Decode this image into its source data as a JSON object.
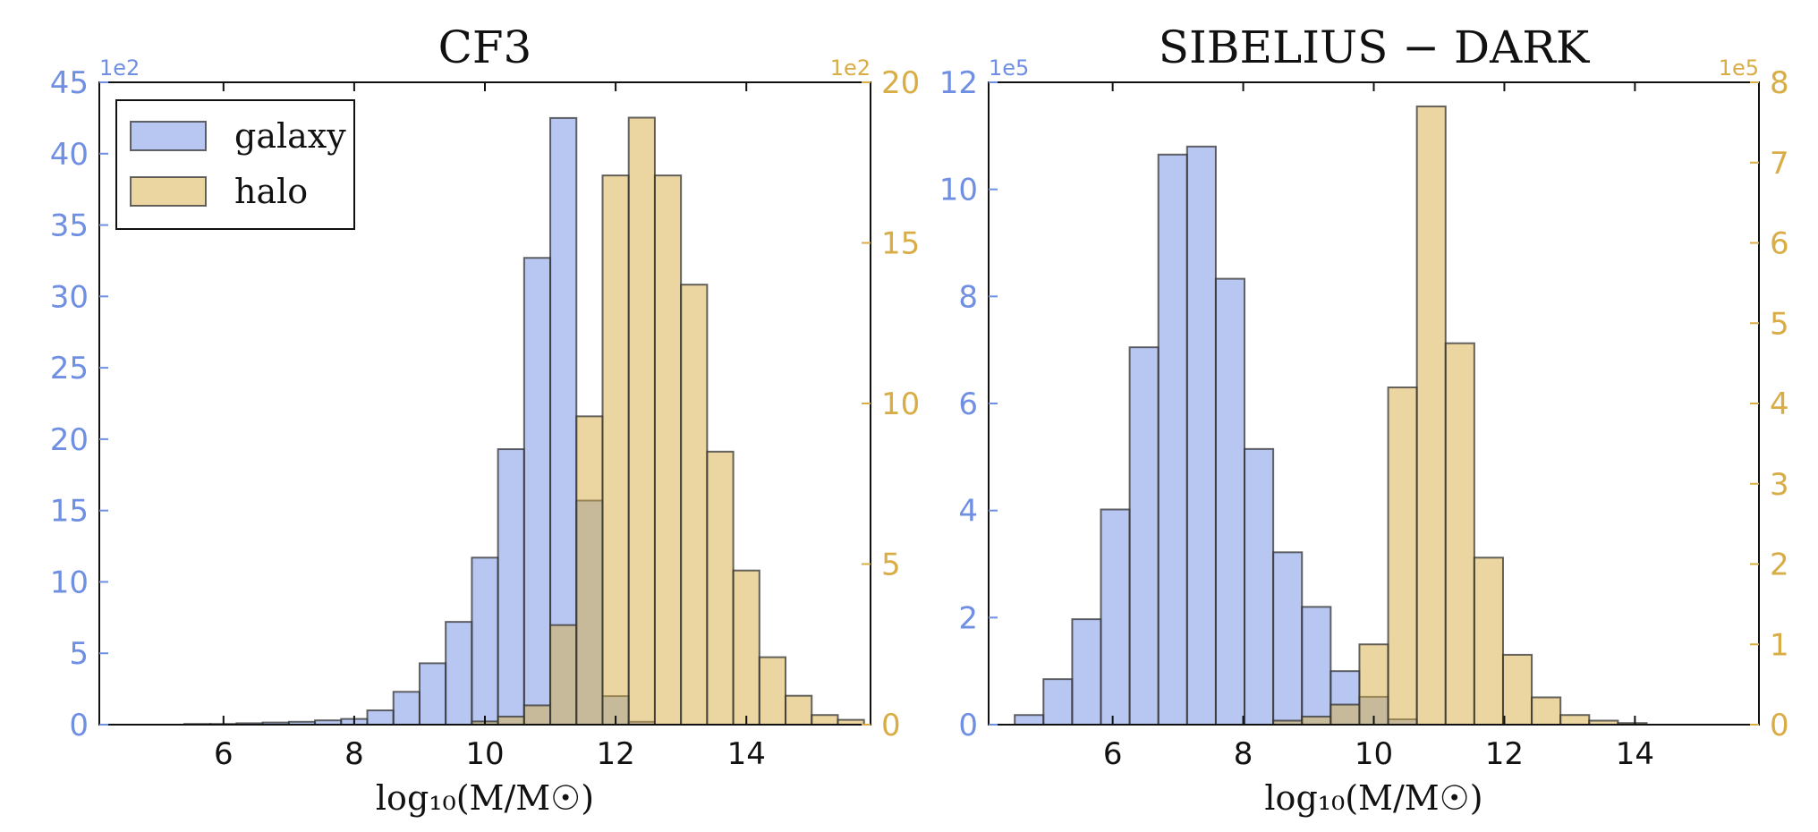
{
  "colors": {
    "galaxy": "#6f8fe3",
    "halo": "#d8ad45",
    "axis": "#111111"
  },
  "chart_data": [
    {
      "type": "bar",
      "title": "CF3",
      "xlabel": "log₁₀(M/M☉)",
      "xlim": [
        4.1,
        15.9
      ],
      "xticks": [
        6,
        8,
        10,
        12,
        14
      ],
      "xtick_labels": [
        "6",
        "8",
        "10",
        "12",
        "14"
      ],
      "y_left": {
        "lim": [
          0,
          45
        ],
        "ticks": [
          0,
          5,
          10,
          15,
          20,
          25,
          30,
          35,
          40,
          45
        ],
        "tick_labels": [
          "0",
          "5",
          "10",
          "15",
          "20",
          "25",
          "30",
          "35",
          "40",
          "45"
        ],
        "scale_label": "1e2",
        "color": "#6f8fe3"
      },
      "y_right": {
        "lim": [
          0,
          20
        ],
        "ticks": [
          0,
          5,
          10,
          15,
          20
        ],
        "tick_labels": [
          "0",
          "5",
          "10",
          "15",
          "20"
        ],
        "scale_label": "1e2",
        "color": "#d8ad45"
      },
      "legend": {
        "position": "top-left",
        "entries": [
          "galaxy",
          "halo"
        ]
      },
      "series": [
        {
          "name": "galaxy",
          "axis": "left",
          "bins": [
            {
              "x0": 5.4,
              "x1": 5.8,
              "y": 0.05
            },
            {
              "x0": 5.8,
              "x1": 6.2,
              "y": 0.05
            },
            {
              "x0": 6.2,
              "x1": 6.6,
              "y": 0.1
            },
            {
              "x0": 6.6,
              "x1": 7.0,
              "y": 0.15
            },
            {
              "x0": 7.0,
              "x1": 7.4,
              "y": 0.2
            },
            {
              "x0": 7.4,
              "x1": 7.8,
              "y": 0.3
            },
            {
              "x0": 7.8,
              "x1": 8.2,
              "y": 0.4
            },
            {
              "x0": 8.2,
              "x1": 8.6,
              "y": 1.0
            },
            {
              "x0": 8.6,
              "x1": 9.0,
              "y": 2.3
            },
            {
              "x0": 9.0,
              "x1": 9.4,
              "y": 4.3
            },
            {
              "x0": 9.4,
              "x1": 9.8,
              "y": 7.2
            },
            {
              "x0": 9.8,
              "x1": 10.2,
              "y": 11.7
            },
            {
              "x0": 10.2,
              "x1": 10.6,
              "y": 19.3
            },
            {
              "x0": 10.6,
              "x1": 11.0,
              "y": 32.7
            },
            {
              "x0": 11.0,
              "x1": 11.4,
              "y": 42.5
            },
            {
              "x0": 11.4,
              "x1": 11.8,
              "y": 15.7
            },
            {
              "x0": 11.8,
              "x1": 12.2,
              "y": 2.0
            },
            {
              "x0": 12.2,
              "x1": 12.6,
              "y": 0.2
            }
          ]
        },
        {
          "name": "halo",
          "axis": "right",
          "bins": [
            {
              "x0": 9.8,
              "x1": 10.2,
              "y": 0.1
            },
            {
              "x0": 10.2,
              "x1": 10.6,
              "y": 0.25
            },
            {
              "x0": 10.6,
              "x1": 11.0,
              "y": 0.6
            },
            {
              "x0": 11.0,
              "x1": 11.4,
              "y": 3.1
            },
            {
              "x0": 11.4,
              "x1": 11.8,
              "y": 9.6
            },
            {
              "x0": 11.8,
              "x1": 12.2,
              "y": 17.1
            },
            {
              "x0": 12.2,
              "x1": 12.6,
              "y": 18.9
            },
            {
              "x0": 12.6,
              "x1": 13.0,
              "y": 17.1
            },
            {
              "x0": 13.0,
              "x1": 13.4,
              "y": 13.7
            },
            {
              "x0": 13.4,
              "x1": 13.8,
              "y": 8.5
            },
            {
              "x0": 13.8,
              "x1": 14.2,
              "y": 4.8
            },
            {
              "x0": 14.2,
              "x1": 14.6,
              "y": 2.1
            },
            {
              "x0": 14.6,
              "x1": 15.0,
              "y": 0.9
            },
            {
              "x0": 15.0,
              "x1": 15.4,
              "y": 0.3
            },
            {
              "x0": 15.4,
              "x1": 15.8,
              "y": 0.15
            }
          ]
        }
      ]
    },
    {
      "type": "bar",
      "title": "SIBELIUS − DARK",
      "xlabel": "log₁₀(M/M☉)",
      "xlim": [
        4.1,
        15.9
      ],
      "xticks": [
        6,
        8,
        10,
        12,
        14
      ],
      "xtick_labels": [
        "6",
        "8",
        "10",
        "12",
        "14"
      ],
      "y_left": {
        "lim": [
          0,
          12
        ],
        "ticks": [
          0,
          2,
          4,
          6,
          8,
          10,
          12
        ],
        "tick_labels": [
          "0",
          "2",
          "4",
          "6",
          "8",
          "10",
          "12"
        ],
        "scale_label": "1e5",
        "color": "#6f8fe3"
      },
      "y_right": {
        "lim": [
          0,
          8
        ],
        "ticks": [
          0,
          1,
          2,
          3,
          4,
          5,
          6,
          7,
          8
        ],
        "tick_labels": [
          "0",
          "1",
          "2",
          "3",
          "4",
          "5",
          "6",
          "7",
          "8"
        ],
        "scale_label": "1e5",
        "color": "#d8ad45"
      },
      "legend": null,
      "series": [
        {
          "name": "galaxy",
          "axis": "left",
          "bins": [
            {
              "x0": 4.5,
              "x1": 4.94,
              "y": 0.18
            },
            {
              "x0": 4.94,
              "x1": 5.38,
              "y": 0.85
            },
            {
              "x0": 5.38,
              "x1": 5.82,
              "y": 1.97
            },
            {
              "x0": 5.82,
              "x1": 6.26,
              "y": 4.02
            },
            {
              "x0": 6.26,
              "x1": 6.7,
              "y": 7.05
            },
            {
              "x0": 6.7,
              "x1": 7.14,
              "y": 10.65
            },
            {
              "x0": 7.14,
              "x1": 7.58,
              "y": 10.8
            },
            {
              "x0": 7.58,
              "x1": 8.02,
              "y": 8.33
            },
            {
              "x0": 8.02,
              "x1": 8.46,
              "y": 5.15
            },
            {
              "x0": 8.46,
              "x1": 8.9,
              "y": 3.22
            },
            {
              "x0": 8.9,
              "x1": 9.34,
              "y": 2.2
            },
            {
              "x0": 9.34,
              "x1": 9.78,
              "y": 1.0
            },
            {
              "x0": 9.78,
              "x1": 10.22,
              "y": 0.52
            },
            {
              "x0": 10.22,
              "x1": 10.66,
              "y": 0.1
            }
          ]
        },
        {
          "name": "halo",
          "axis": "right",
          "bins": [
            {
              "x0": 8.46,
              "x1": 8.9,
              "y": 0.05
            },
            {
              "x0": 8.9,
              "x1": 9.34,
              "y": 0.1
            },
            {
              "x0": 9.34,
              "x1": 9.78,
              "y": 0.25
            },
            {
              "x0": 9.78,
              "x1": 10.22,
              "y": 1.0
            },
            {
              "x0": 10.22,
              "x1": 10.66,
              "y": 4.2
            },
            {
              "x0": 10.66,
              "x1": 11.1,
              "y": 7.7
            },
            {
              "x0": 11.1,
              "x1": 11.54,
              "y": 4.75
            },
            {
              "x0": 11.54,
              "x1": 11.98,
              "y": 2.08
            },
            {
              "x0": 11.98,
              "x1": 12.42,
              "y": 0.87
            },
            {
              "x0": 12.42,
              "x1": 12.86,
              "y": 0.34
            },
            {
              "x0": 12.86,
              "x1": 13.3,
              "y": 0.12
            },
            {
              "x0": 13.3,
              "x1": 13.74,
              "y": 0.05
            },
            {
              "x0": 13.74,
              "x1": 14.18,
              "y": 0.02
            }
          ]
        }
      ]
    }
  ]
}
